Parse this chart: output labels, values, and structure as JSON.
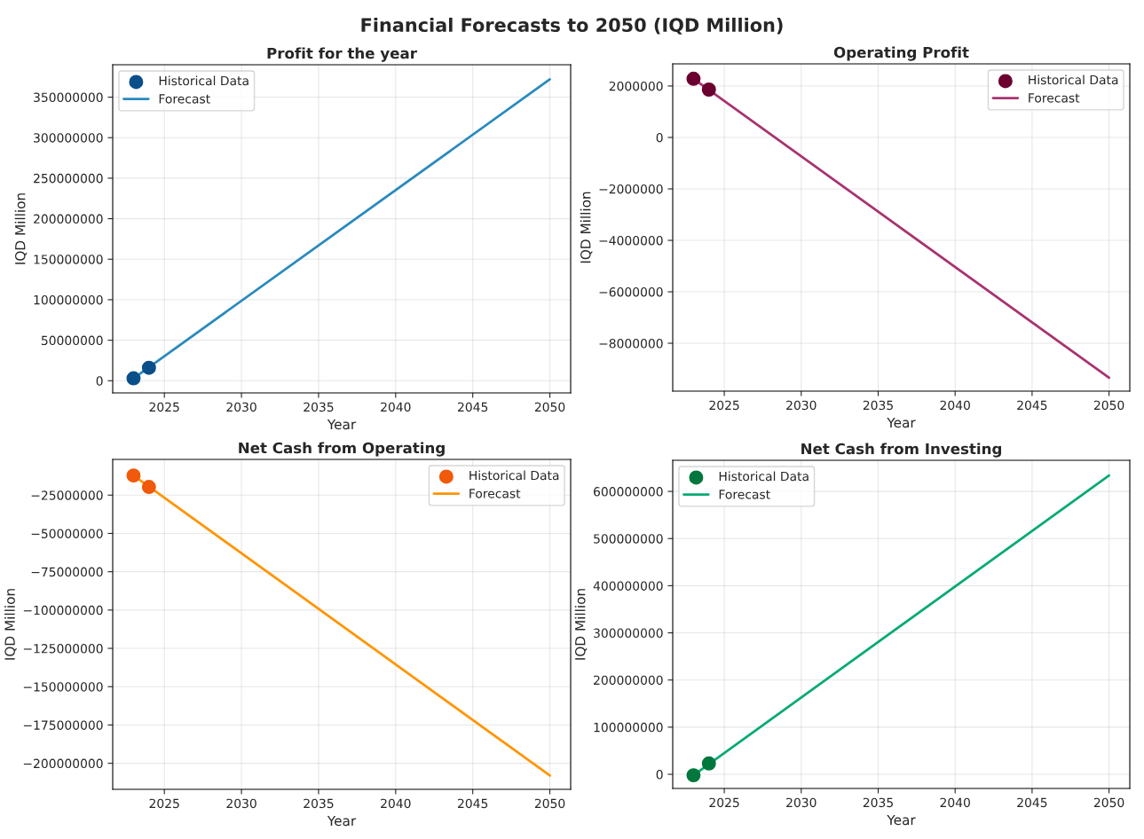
{
  "chart_data": [
    {
      "type": "line",
      "title": "Profit for the year",
      "xlabel": "Year",
      "ylabel": "IQD Million",
      "annotations": [
        "Financial Forecasts to 2050 (IQD Million)"
      ],
      "series": [
        {
          "name": "Historical Data",
          "type": "scatter",
          "marker": "circle",
          "color": "#0b4f8a",
          "x": [
            2023,
            2024
          ],
          "values": [
            3000000,
            16000000
          ]
        },
        {
          "name": "Forecast",
          "color": "#2a8abd",
          "x": [
            2023,
            2050
          ],
          "values": [
            3000000,
            372000000
          ]
        }
      ],
      "xlim": [
        2021.65,
        2051.35
      ],
      "xticks": [
        2025,
        2030,
        2035,
        2040,
        2045,
        2050
      ],
      "ylim": [
        -15000000,
        390000000
      ],
      "yticks": [
        0,
        50000000,
        100000000,
        150000000,
        200000000,
        250000000,
        300000000,
        350000000
      ],
      "grid": true,
      "legend": "top left",
      "line_style": "solid"
    },
    {
      "type": "line",
      "title": "Operating Profit",
      "xlabel": "Year",
      "ylabel": "IQD Million",
      "series": [
        {
          "name": "Historical Data",
          "type": "scatter",
          "marker": "circle",
          "color": "#6b0030",
          "x": [
            2023,
            2024
          ],
          "values": [
            2280000,
            1860000
          ]
        },
        {
          "name": "Forecast",
          "color": "#a8336f",
          "x": [
            2023,
            2050
          ],
          "values": [
            2280000,
            -9340000
          ]
        }
      ],
      "xlim": [
        2021.65,
        2051.35
      ],
      "xticks": [
        2025,
        2030,
        2035,
        2040,
        2045,
        2050
      ],
      "ylim": [
        -9860000,
        2860000
      ],
      "yticks": [
        -8000000,
        -6000000,
        -4000000,
        -2000000,
        0,
        2000000
      ],
      "grid": true,
      "legend": "top right",
      "line_style": "solid"
    },
    {
      "type": "line",
      "title": "Net Cash from Operating",
      "xlabel": "Year",
      "ylabel": "IQD Million",
      "series": [
        {
          "name": "Historical Data",
          "type": "scatter",
          "marker": "circle",
          "color": "#f05a0a",
          "x": [
            2023,
            2024
          ],
          "values": [
            -12200000,
            -19700000
          ]
        },
        {
          "name": "Forecast",
          "color": "#ff9505",
          "x": [
            2023,
            2050
          ],
          "values": [
            -12200000,
            -208000000
          ]
        }
      ],
      "xlim": [
        2021.65,
        2051.35
      ],
      "xticks": [
        2025,
        2030,
        2035,
        2040,
        2045,
        2050
      ],
      "ylim": [
        -217000000,
        -1700000
      ],
      "yticks": [
        -200000000,
        -175000000,
        -150000000,
        -125000000,
        -100000000,
        -75000000,
        -50000000,
        -25000000
      ],
      "grid": true,
      "legend": "top right",
      "line_style": "solid"
    },
    {
      "type": "line",
      "title": "Net Cash from Investing",
      "xlabel": "Year",
      "ylabel": "IQD Million",
      "series": [
        {
          "name": "Historical Data",
          "type": "scatter",
          "marker": "circle",
          "color": "#00773c",
          "x": [
            2023,
            2024
          ],
          "values": [
            -2000000,
            23000000
          ]
        },
        {
          "name": "Forecast",
          "color": "#0aaa75",
          "x": [
            2023,
            2050
          ],
          "values": [
            -2000000,
            634000000
          ]
        }
      ],
      "xlim": [
        2021.65,
        2051.35
      ],
      "xticks": [
        2025,
        2030,
        2035,
        2040,
        2045,
        2050
      ],
      "ylim": [
        -30000000,
        666000000
      ],
      "yticks": [
        0,
        100000000,
        200000000,
        300000000,
        400000000,
        500000000,
        600000000
      ],
      "grid": true,
      "legend": "top left",
      "line_style": "solid"
    }
  ]
}
